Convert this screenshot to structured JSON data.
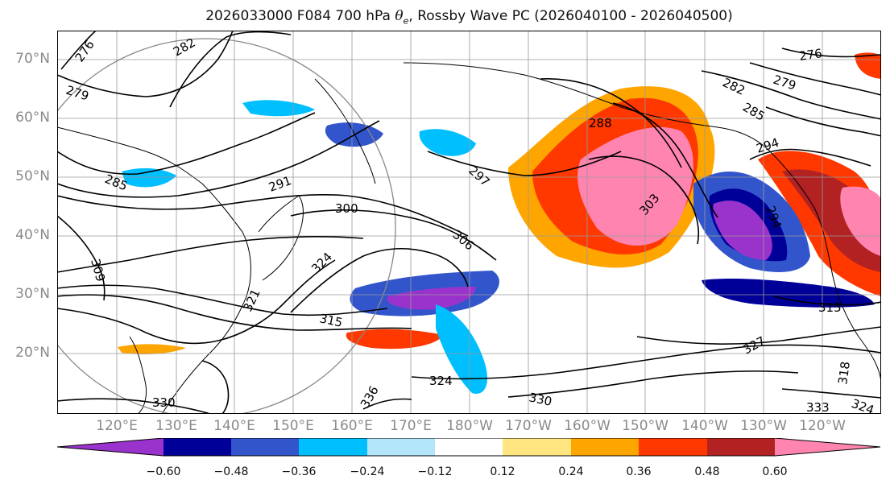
{
  "title": {
    "prefix": "2026033000 F084 700 hPa ",
    "var_symbol": "θ",
    "var_sub": "e",
    "suffix": ", Rossby Wave PC (2026040100 - 2026040500)"
  },
  "lat_labels": [
    "70°N",
    "60°N",
    "50°N",
    "40°N",
    "30°N",
    "20°N"
  ],
  "lon_labels": [
    "120°E",
    "130°E",
    "140°E",
    "150°E",
    "160°E",
    "170°E",
    "180°W",
    "170°W",
    "160°W",
    "150°W",
    "140°W",
    "130°W",
    "120°W"
  ],
  "contour_labels": [
    "276",
    "282",
    "279",
    "285",
    "288",
    "291",
    "294",
    "297",
    "300",
    "303",
    "306",
    "309",
    "312",
    "315",
    "318",
    "321",
    "324",
    "327",
    "330",
    "333",
    "336"
  ],
  "colorbar": {
    "ticks": [
      "−0.60",
      "−0.48",
      "−0.36",
      "−0.24",
      "−0.12",
      "0.12",
      "0.24",
      "0.36",
      "0.48",
      "0.60"
    ],
    "colors": [
      "#9a33cc",
      "#000099",
      "#3355cc",
      "#00bfff",
      "#b3e6fb",
      "#ffffff",
      "#ffe680",
      "#ffa500",
      "#ff3800",
      "#b22222",
      "#ff85b0"
    ]
  }
}
